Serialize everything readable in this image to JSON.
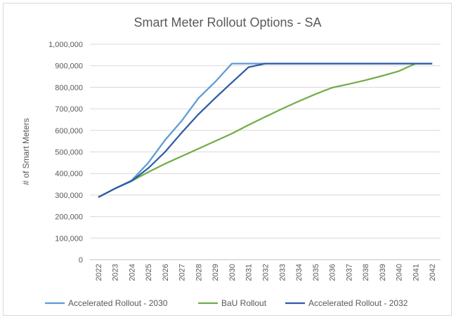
{
  "chart_data": {
    "type": "line",
    "title": "Smart Meter Rollout Options - SA",
    "xlabel": "",
    "ylabel": "# of Smart Meters",
    "ylim": [
      0,
      1000000
    ],
    "yticks": [
      "0",
      "100,000",
      "200,000",
      "300,000",
      "400,000",
      "500,000",
      "600,000",
      "700,000",
      "800,000",
      "900,000",
      "1,000,000"
    ],
    "grid": true,
    "legend_position": "bottom",
    "x": [
      "2022",
      "2023",
      "2024",
      "2025",
      "2026",
      "2027",
      "2028",
      "2029",
      "2030",
      "2031",
      "2032",
      "2033",
      "2034",
      "2035",
      "2036",
      "2037",
      "2038",
      "2039",
      "2040",
      "2041",
      "2042"
    ],
    "series": [
      {
        "name": "Accelerated Rollout - 2030",
        "color": "#5b9bd5",
        "values": [
          290000,
          330000,
          368000,
          450000,
          555000,
          645000,
          750000,
          825000,
          910000,
          910000,
          910000,
          910000,
          910000,
          910000,
          910000,
          910000,
          910000,
          910000,
          910000,
          910000,
          910000
        ]
      },
      {
        "name": "BaU Rollout",
        "color": "#70ad47",
        "values": [
          290000,
          330000,
          365000,
          407000,
          445000,
          480000,
          515000,
          550000,
          585000,
          625000,
          663000,
          700000,
          735000,
          768000,
          798000,
          815000,
          833000,
          853000,
          875000,
          910000,
          910000
        ]
      },
      {
        "name": "Accelerated Rollout - 2032",
        "color": "#2e5aa8",
        "values": [
          290000,
          330000,
          365000,
          425000,
          500000,
          590000,
          675000,
          750000,
          822000,
          893000,
          910000,
          910000,
          910000,
          910000,
          910000,
          910000,
          910000,
          910000,
          910000,
          910000,
          910000
        ]
      }
    ]
  }
}
